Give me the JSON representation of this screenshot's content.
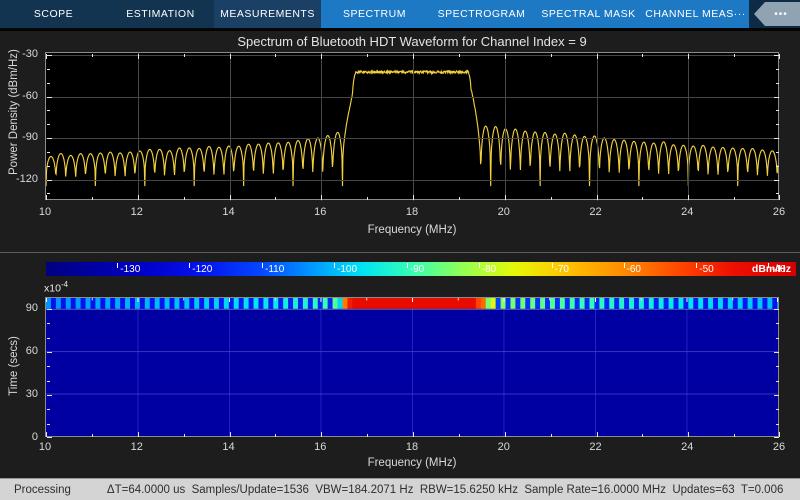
{
  "toolbar": {
    "tabs": [
      {
        "label": "SCOPE",
        "group": "left"
      },
      {
        "label": "ESTIMATION",
        "group": "left"
      },
      {
        "label": "MEASUREMENTS",
        "group": "left-hl"
      },
      {
        "label": "SPECTRUM",
        "group": "right"
      },
      {
        "label": "SPECTROGRAM",
        "group": "right"
      },
      {
        "label": "SPECTRAL MASK",
        "group": "right"
      },
      {
        "label": "CHANNEL MEAS···",
        "group": "right"
      }
    ],
    "more_button": {
      "icon": "ellipsis-icon",
      "label": "•••"
    }
  },
  "status_bar": {
    "state": "Processing",
    "metrics": [
      "ΔT=64.0000 us",
      "Samples/Update=1536",
      "VBW=184.2071 Hz",
      "RBW=15.6250 kHz",
      "Sample Rate=16.0000 MHz",
      "Updates=63",
      "T=0.006"
    ]
  },
  "chart_data": [
    {
      "type": "line",
      "title": "Spectrum of Bluetooth HDT Waveform for Channel Index = 9",
      "xlabel": "Frequency (MHz)",
      "ylabel": "Power Density (dBm/Hz)",
      "xlim": [
        10,
        26
      ],
      "ylim": [
        -135.5,
        -28.5
      ],
      "xticks": [
        10,
        12,
        14,
        16,
        18,
        20,
        22,
        24,
        26
      ],
      "xticks_minor": [
        11,
        13,
        15,
        17,
        19,
        21,
        23,
        25
      ],
      "yticks": [
        -30,
        -60,
        -90,
        -120
      ],
      "yticks_minor": [
        -40,
        -50,
        -70,
        -80,
        -100,
        -110,
        -130
      ],
      "grid": true,
      "line_color": "#f2d03d",
      "plot_bg": "#000000",
      "series_model": {
        "description": "Flat-top main lobe with sinc-like sidelobes",
        "main_lobe": {
          "f_start_mhz": 16.62,
          "f_stop_mhz": 19.38,
          "level_dbm_hz": -42.5,
          "edge_width_mhz": 0.26,
          "top_noise_db": 2.0
        },
        "sidelobe_period_mhz": 0.216,
        "sidelobe_null_level_dbm_hz": -126,
        "sidelobe_peak_envelope": [
          [
            10,
            -103.5
          ],
          [
            11,
            -102
          ],
          [
            12,
            -100.5
          ],
          [
            13,
            -99
          ],
          [
            14,
            -97
          ],
          [
            15,
            -94.5
          ],
          [
            15.7,
            -91.5
          ],
          [
            16.2,
            -88
          ],
          [
            16.55,
            -85
          ],
          [
            19.45,
            -82
          ],
          [
            20,
            -83.5
          ],
          [
            20.8,
            -86
          ],
          [
            21.8,
            -89.5
          ],
          [
            22.8,
            -92.5
          ],
          [
            23.8,
            -95
          ],
          [
            24.8,
            -97.5
          ],
          [
            26,
            -99.5
          ]
        ]
      }
    },
    {
      "type": "heatmap",
      "xlabel": "Frequency (MHz)",
      "ylabel": "Time (secs)",
      "y_multiplier_base": "x10",
      "y_multiplier_exp": "-4",
      "xlim": [
        10,
        26
      ],
      "ylim_e4": [
        0,
        97.6
      ],
      "xticks": [
        10,
        12,
        14,
        16,
        18,
        20,
        22,
        24,
        26
      ],
      "xticks_minor": [
        11,
        13,
        15,
        17,
        19,
        21,
        23,
        25
      ],
      "yticks": [
        0,
        30,
        60,
        90
      ],
      "yticks_minor": [
        10,
        20,
        40,
        50,
        70,
        80
      ],
      "body_value_dbm_hz": -130,
      "body_color": "#0000a2",
      "stripe_time_range_e4": [
        90,
        97.6
      ],
      "stripe_bin_mhz": 0.108,
      "grid_color": "#2a2ac4",
      "colorbar": {
        "unit": "dBm/Hz",
        "ticks": [
          -130,
          -120,
          -110,
          -100,
          -90,
          -80,
          -70,
          -60,
          -50,
          -40
        ],
        "bar_range": [
          -139.8,
          -36.2
        ],
        "jet_stops": [
          [
            -139.8,
            "#000080"
          ],
          [
            -126,
            "#0000c8"
          ],
          [
            -118,
            "#0414f0"
          ],
          [
            -110,
            "#0448ff"
          ],
          [
            -102,
            "#00a4ff"
          ],
          [
            -96,
            "#00e4f4"
          ],
          [
            -89,
            "#38ffb0"
          ],
          [
            -82,
            "#96ff50"
          ],
          [
            -75,
            "#e6f806"
          ],
          [
            -68,
            "#ffc400"
          ],
          [
            -60,
            "#ff8c00"
          ],
          [
            -52,
            "#ff4400"
          ],
          [
            -45,
            "#ee1000"
          ],
          [
            -36.2,
            "#d40000"
          ]
        ]
      }
    }
  ]
}
